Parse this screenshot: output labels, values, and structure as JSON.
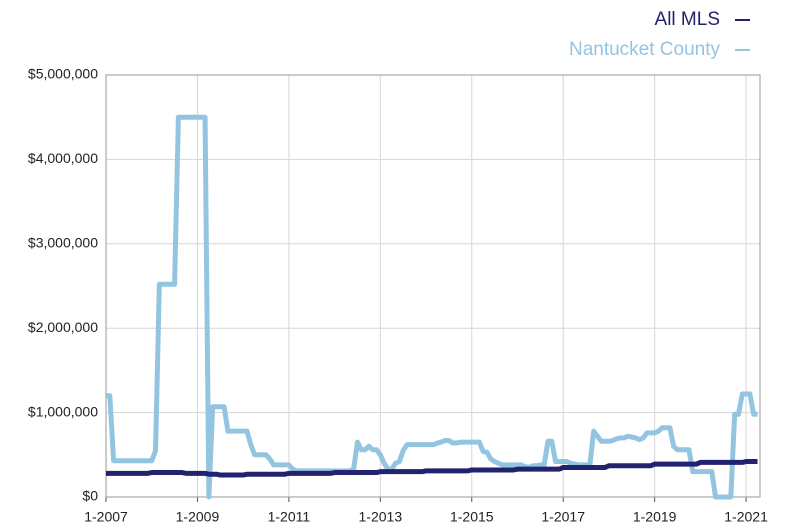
{
  "chart_data": {
    "type": "line",
    "categories": [
      "1-2007",
      null,
      null,
      null,
      null,
      null,
      null,
      null,
      null,
      null,
      null,
      null,
      null,
      null,
      null,
      null,
      null,
      null,
      null,
      null,
      null,
      null,
      null,
      null,
      "1-2009",
      null,
      null,
      null,
      null,
      null,
      null,
      null,
      null,
      null,
      null,
      null,
      null,
      null,
      null,
      null,
      null,
      null,
      null,
      null,
      null,
      null,
      null,
      null,
      "1-2011",
      null,
      null,
      null,
      null,
      null,
      null,
      null,
      null,
      null,
      null,
      null,
      null,
      null,
      null,
      null,
      null,
      null,
      null,
      null,
      null,
      null,
      null,
      null,
      "1-2013",
      null,
      null,
      null,
      null,
      null,
      null,
      null,
      null,
      null,
      null,
      null,
      null,
      null,
      null,
      null,
      null,
      null,
      null,
      null,
      null,
      null,
      null,
      null,
      "1-2015",
      null,
      null,
      null,
      null,
      null,
      null,
      null,
      null,
      null,
      null,
      null,
      null,
      null,
      null,
      null,
      null,
      null,
      null,
      null,
      null,
      null,
      null,
      null,
      "1-2017",
      null,
      null,
      null,
      null,
      null,
      null,
      null,
      null,
      null,
      null,
      null,
      null,
      null,
      null,
      null,
      null,
      null,
      null,
      null,
      null,
      null,
      null,
      null,
      "1-2019",
      null,
      null,
      null,
      null,
      null,
      null,
      null,
      null,
      null,
      null,
      null,
      null,
      null,
      null,
      null,
      null,
      null,
      null,
      null,
      null,
      null,
      null,
      null,
      "1-2021",
      null,
      null,
      null
    ],
    "series": [
      {
        "name": "All MLS",
        "color": "#23226e",
        "values": [
          280000,
          280000,
          280000,
          280000,
          280000,
          280000,
          280000,
          280000,
          280000,
          280000,
          280000,
          280000,
          290000,
          290000,
          290000,
          290000,
          290000,
          290000,
          290000,
          290000,
          290000,
          280000,
          280000,
          280000,
          280000,
          280000,
          280000,
          270000,
          270000,
          270000,
          260000,
          260000,
          260000,
          260000,
          260000,
          260000,
          260000,
          270000,
          270000,
          270000,
          270000,
          270000,
          270000,
          270000,
          270000,
          270000,
          270000,
          270000,
          280000,
          280000,
          280000,
          280000,
          280000,
          280000,
          280000,
          280000,
          280000,
          280000,
          280000,
          280000,
          290000,
          290000,
          290000,
          290000,
          290000,
          290000,
          290000,
          290000,
          290000,
          290000,
          290000,
          290000,
          300000,
          300000,
          300000,
          300000,
          300000,
          300000,
          300000,
          300000,
          300000,
          300000,
          300000,
          300000,
          310000,
          310000,
          310000,
          310000,
          310000,
          310000,
          310000,
          310000,
          310000,
          310000,
          310000,
          310000,
          320000,
          320000,
          320000,
          320000,
          320000,
          320000,
          320000,
          320000,
          320000,
          320000,
          320000,
          320000,
          330000,
          330000,
          330000,
          330000,
          330000,
          330000,
          330000,
          330000,
          330000,
          330000,
          330000,
          330000,
          350000,
          350000,
          350000,
          350000,
          350000,
          350000,
          350000,
          350000,
          350000,
          350000,
          350000,
          350000,
          370000,
          370000,
          370000,
          370000,
          370000,
          370000,
          370000,
          370000,
          370000,
          370000,
          370000,
          370000,
          390000,
          390000,
          390000,
          390000,
          390000,
          390000,
          390000,
          390000,
          390000,
          390000,
          390000,
          390000,
          410000,
          410000,
          410000,
          410000,
          410000,
          410000,
          410000,
          410000,
          410000,
          410000,
          410000,
          410000,
          420000,
          420000,
          420000,
          420000
        ]
      },
      {
        "name": "Nantucket County",
        "color": "#93c5e1",
        "values": [
          1200000,
          1200000,
          430000,
          430000,
          430000,
          430000,
          430000,
          430000,
          430000,
          430000,
          430000,
          430000,
          430000,
          550000,
          2520000,
          2520000,
          2520000,
          2520000,
          2520000,
          4500000,
          4500000,
          4500000,
          4500000,
          4500000,
          4500000,
          4500000,
          4500000,
          0,
          1070000,
          1070000,
          1070000,
          1070000,
          780000,
          780000,
          780000,
          780000,
          780000,
          780000,
          620000,
          500000,
          500000,
          500000,
          500000,
          450000,
          380000,
          380000,
          380000,
          380000,
          380000,
          330000,
          310000,
          310000,
          310000,
          310000,
          310000,
          310000,
          310000,
          310000,
          310000,
          310000,
          310000,
          310000,
          310000,
          310000,
          310000,
          330000,
          650000,
          560000,
          560000,
          600000,
          560000,
          560000,
          500000,
          400000,
          330000,
          330000,
          400000,
          420000,
          550000,
          620000,
          620000,
          620000,
          620000,
          620000,
          620000,
          620000,
          620000,
          640000,
          650000,
          670000,
          670000,
          640000,
          640000,
          650000,
          650000,
          650000,
          650000,
          650000,
          650000,
          540000,
          530000,
          450000,
          420000,
          400000,
          380000,
          380000,
          380000,
          380000,
          380000,
          380000,
          360000,
          350000,
          370000,
          370000,
          380000,
          380000,
          660000,
          660000,
          420000,
          420000,
          420000,
          420000,
          400000,
          390000,
          380000,
          380000,
          380000,
          380000,
          780000,
          720000,
          660000,
          660000,
          660000,
          670000,
          690000,
          700000,
          700000,
          720000,
          710000,
          700000,
          680000,
          700000,
          760000,
          760000,
          760000,
          780000,
          820000,
          820000,
          820000,
          600000,
          560000,
          560000,
          560000,
          560000,
          300000,
          300000,
          300000,
          300000,
          300000,
          300000,
          0,
          0,
          0,
          0,
          0,
          980000,
          980000,
          1220000,
          1220000,
          1220000,
          980000,
          980000
        ]
      }
    ],
    "ylim": [
      0,
      5000000
    ],
    "yticks": [
      {
        "value": 0,
        "label": "$0"
      },
      {
        "value": 1000000,
        "label": "$1,000,000"
      },
      {
        "value": 2000000,
        "label": "$2,000,000"
      },
      {
        "value": 3000000,
        "label": "$3,000,000"
      },
      {
        "value": 4000000,
        "label": "$4,000,000"
      },
      {
        "value": 5000000,
        "label": "$5,000,000"
      }
    ],
    "grid": true,
    "legend": "top-right"
  }
}
